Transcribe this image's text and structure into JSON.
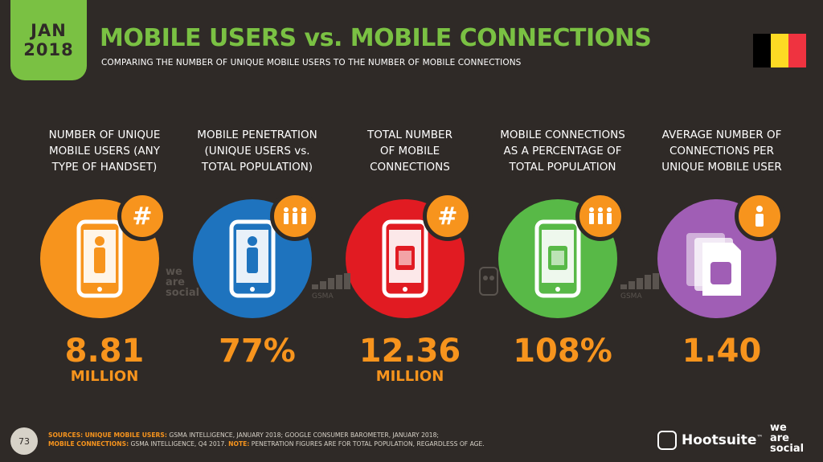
{
  "badge": {
    "month": "JAN",
    "year": "2018"
  },
  "title": "MOBILE USERS vs. MOBILE CONNECTIONS",
  "subtitle": "COMPARING THE NUMBER OF UNIQUE MOBILE USERS TO THE NUMBER OF MOBILE CONNECTIONS",
  "flag": {
    "colors": [
      "#000000",
      "#fdda24",
      "#ef3340"
    ],
    "icon": "belgium-flag"
  },
  "columns": [
    {
      "label_lines": [
        "NUMBER OF UNIQUE",
        "MOBILE USERS (ANY",
        "TYPE OF HANDSET)"
      ],
      "value": "8.81",
      "unit": "MILLION",
      "color": "#f7941d",
      "icon": "phone-user-icon",
      "badge_icon": "hash-icon",
      "badge_text": "#"
    },
    {
      "label_lines": [
        "MOBILE PENETRATION",
        "(UNIQUE USERS vs.",
        "TOTAL POPULATION)"
      ],
      "value": "77%",
      "unit": "",
      "color": "#1e73be",
      "icon": "phone-user-icon",
      "badge_icon": "people-icon",
      "badge_text": ""
    },
    {
      "label_lines": [
        "TOTAL NUMBER",
        "OF MOBILE",
        "CONNECTIONS"
      ],
      "value": "12.36",
      "unit": "MILLION",
      "color": "#e11b22",
      "icon": "phone-sim-icon",
      "badge_icon": "hash-icon",
      "badge_text": "#"
    },
    {
      "label_lines": [
        "MOBILE CONNECTIONS",
        "AS A PERCENTAGE OF",
        "TOTAL POPULATION"
      ],
      "value": "108%",
      "unit": "",
      "color": "#58b947",
      "icon": "phone-sim-icon",
      "badge_icon": "people-icon",
      "badge_text": ""
    },
    {
      "label_lines": [
        "AVERAGE NUMBER OF",
        "CONNECTIONS PER",
        "UNIQUE MOBILE USER"
      ],
      "value": "1.40",
      "unit": "",
      "color": "#a05eb5",
      "icon": "sim-cards-icon",
      "badge_icon": "person-icon",
      "badge_text": ""
    }
  ],
  "watermarks": {
    "we_are_social": [
      "we",
      "are",
      "social"
    ],
    "gsma": "GSMA"
  },
  "footer": {
    "page": "73",
    "sources_label": "SOURCES:",
    "users_label": "UNIQUE MOBILE USERS:",
    "users_text": "GSMA INTELLIGENCE, JANUARY 2018; GOOGLE CONSUMER BAROMETER, JANUARY 2018;",
    "connections_label": "MOBILE CONNECTIONS:",
    "connections_text": "GSMA INTELLIGENCE, Q4 2017.",
    "note_label": "NOTE:",
    "note_text": "PENETRATION FIGURES ARE FOR TOTAL POPULATION, REGARDLESS OF AGE.",
    "hootsuite": "Hootsuite",
    "tm": "™",
    "was": [
      "we",
      "are",
      "social"
    ]
  }
}
